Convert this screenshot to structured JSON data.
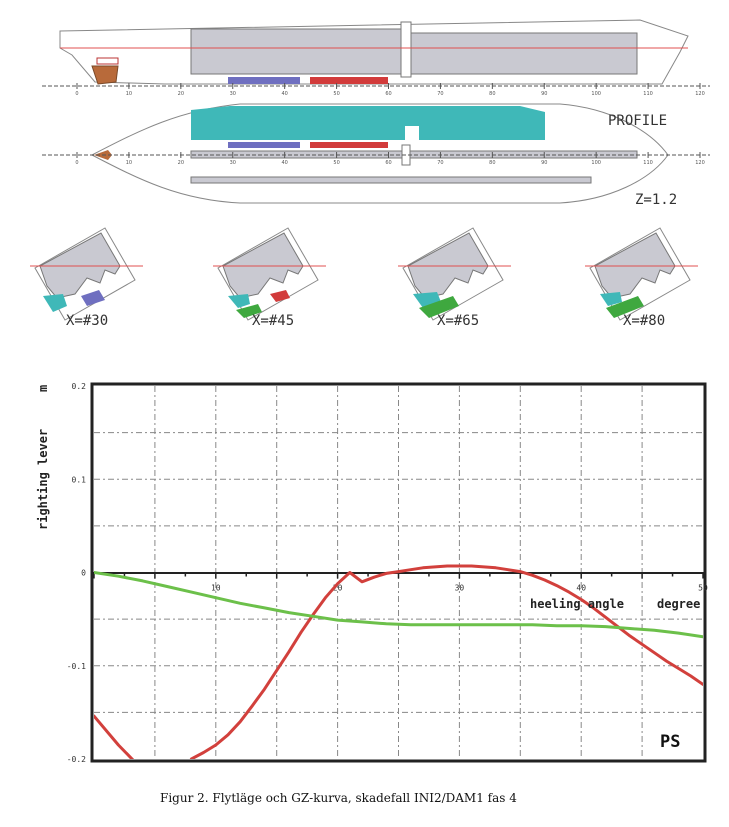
{
  "ship_views": {
    "profile_label": "PROFILE",
    "z_label": "Z=1.2",
    "sections": [
      {
        "label": "X=#30",
        "flooded": [
          "cyan",
          "blue"
        ]
      },
      {
        "label": "X=#45",
        "flooded": [
          "cyan",
          "red",
          "green"
        ]
      },
      {
        "label": "X=#65",
        "flooded": [
          "cyan",
          "green"
        ]
      },
      {
        "label": "X=#80",
        "flooded": [
          "cyan",
          "green"
        ]
      }
    ],
    "scale_ticks": [
      "0",
      "10",
      "20",
      "30",
      "40",
      "50",
      "60",
      "70",
      "80",
      "90",
      "100",
      "110",
      "120"
    ],
    "colors": {
      "hull_fill": "#c9c9d1",
      "waterline": "#e05050",
      "cyan": "#3fb8b8",
      "blue": "#6f6fc0",
      "red": "#d23b3b",
      "green": "#3fa83f",
      "rudder": "#b86a3a"
    }
  },
  "chart_data": {
    "type": "line",
    "xlabel": "heeling angle",
    "xunit": "degree",
    "ylabel": "righting lever",
    "yunit": "m",
    "xlim": [
      0,
      50
    ],
    "ylim": [
      -0.2,
      0.2
    ],
    "x_ticks": [
      "10",
      "20",
      "30",
      "40",
      "50"
    ],
    "y_ticks": [
      "0.2",
      "0.1",
      "0",
      "-0.1",
      "-0.2"
    ],
    "grid": true,
    "corner_label": "PS",
    "series": [
      {
        "color": "#d2403c",
        "x": [
          0,
          2,
          3.5,
          5,
          7,
          8,
          9,
          10,
          11,
          12,
          13,
          14,
          15,
          16,
          17,
          18,
          19,
          20,
          21,
          22,
          23,
          24,
          25,
          26,
          27,
          28,
          29,
          30,
          31,
          32,
          33,
          34,
          35,
          36,
          37,
          38,
          39,
          40,
          41,
          42,
          43,
          44,
          45,
          46,
          47,
          48,
          49,
          50
        ],
        "y": [
          -0.154,
          -0.185,
          -0.205,
          -0.22,
          -0.228,
          -0.2,
          -0.193,
          -0.185,
          -0.174,
          -0.16,
          -0.143,
          -0.125,
          -0.105,
          -0.085,
          -0.064,
          -0.045,
          -0.027,
          -0.012,
          0.0,
          -0.01,
          -0.005,
          -0.001,
          0.001,
          0.003,
          0.005,
          0.006,
          0.007,
          0.007,
          0.007,
          0.006,
          0.005,
          0.003,
          0.001,
          -0.003,
          -0.008,
          -0.014,
          -0.021,
          -0.029,
          -0.038,
          -0.048,
          -0.058,
          -0.068,
          -0.077,
          -0.086,
          -0.095,
          -0.103,
          -0.111,
          -0.12
        ]
      },
      {
        "color": "#6cc04a",
        "x": [
          0,
          2,
          4,
          6,
          8,
          10,
          12,
          14,
          16,
          18,
          20,
          22,
          24,
          26,
          28,
          30,
          32,
          34,
          36,
          38,
          40,
          42,
          44,
          46,
          48,
          50
        ],
        "y": [
          0.0,
          -0.004,
          -0.009,
          -0.015,
          -0.021,
          -0.027,
          -0.033,
          -0.038,
          -0.043,
          -0.047,
          -0.051,
          -0.053,
          -0.055,
          -0.056,
          -0.056,
          -0.056,
          -0.056,
          -0.056,
          -0.056,
          -0.057,
          -0.057,
          -0.058,
          -0.06,
          -0.062,
          -0.065,
          -0.069
        ]
      }
    ]
  },
  "caption": "Figur 2. Flytläge och GZ-kurva, skadefall INI2/DAM1 fas 4"
}
